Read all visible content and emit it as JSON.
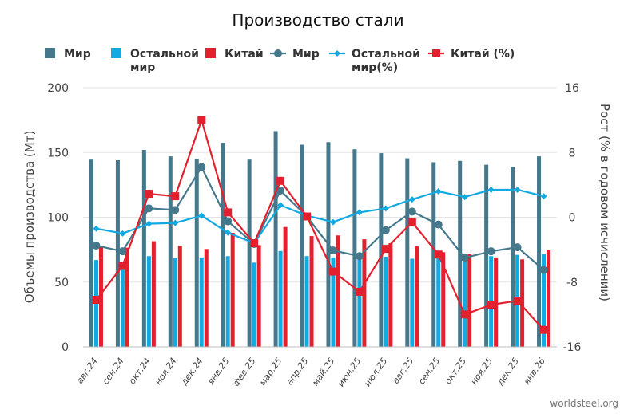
{
  "chart_data": {
    "type": "bar",
    "title": "Производство стали",
    "categories": [
      "авг.24",
      "сен.24",
      "окт.24",
      "ноя.24",
      "дек.24",
      "янв.25",
      "фев.25",
      "мар.25",
      "апр.25",
      "май.25",
      "июн.25",
      "июл.25",
      "авг.25",
      "сен.25",
      "окт.25",
      "ноя.25",
      "дек.25",
      "янв.26"
    ],
    "ylabel": "Объемы производства (Мт)",
    "y2label": "Рост (% в годовом исчислении)",
    "ylim": [
      0,
      200
    ],
    "y2lim": [
      -16,
      16
    ],
    "yticks": [
      0,
      50,
      100,
      150,
      200
    ],
    "y2ticks": [
      -16,
      -8,
      0,
      8,
      16
    ],
    "bars": [
      {
        "name": "Мир",
        "color": "#46788c",
        "values": [
          144.5,
          144,
          152,
          147,
          145,
          157.5,
          144.5,
          166.5,
          156,
          158,
          152.5,
          149.5,
          145.5,
          142.5,
          143.5,
          140.5,
          139,
          147
        ]
      },
      {
        "name": "Остальной мир",
        "color": "#13a9e1",
        "values": [
          67,
          63,
          70,
          68.5,
          69,
          70,
          65,
          74,
          70,
          69,
          70,
          69.5,
          68,
          69.5,
          70,
          70,
          71,
          71.5
        ]
      },
      {
        "name": "Китай",
        "color": "#e3202e",
        "values": [
          77.5,
          76.5,
          81.5,
          78,
          75.5,
          88,
          78.5,
          92.5,
          85.5,
          86,
          83,
          80,
          77.5,
          73,
          71.5,
          69,
          67.5,
          75
        ]
      }
    ],
    "lines": [
      {
        "name": "Мир",
        "color": "#46788c",
        "marker": "circle",
        "values": [
          -3.5,
          -4.2,
          1.1,
          0.9,
          6.2,
          -0.5,
          -3.3,
          3.3,
          0.1,
          -4.1,
          -4.8,
          -1.6,
          0.7,
          -0.9,
          -5,
          -4.2,
          -3.7,
          -6.5
        ]
      },
      {
        "name": "Остальной мир(%)",
        "color": "#13a9e1",
        "marker": "diamond",
        "values": [
          -1.4,
          -2,
          -0.8,
          -0.7,
          0.2,
          -1.9,
          -3.2,
          1.5,
          0.2,
          -0.6,
          0.6,
          1.1,
          2.2,
          3.2,
          2.5,
          3.4,
          3.4,
          2.6
        ]
      },
      {
        "name": "Китай (%)",
        "color": "#e3202e",
        "marker": "square",
        "values": [
          -10.2,
          -6,
          2.9,
          2.6,
          12,
          0.6,
          -3.2,
          4.5,
          0.1,
          -6.7,
          -9.2,
          -3.9,
          -0.6,
          -4.6,
          -12,
          -10.8,
          -10.3,
          -13.9
        ]
      }
    ],
    "legend": {
      "items": [
        {
          "line1": "Мир",
          "line2": "",
          "color": "#46788c",
          "kind": "bar"
        },
        {
          "line1": "Остальной",
          "line2": "мир",
          "color": "#13a9e1",
          "kind": "bar"
        },
        {
          "line1": "Китай",
          "line2": "",
          "color": "#e3202e",
          "kind": "bar"
        },
        {
          "line1": "Мир",
          "line2": "",
          "color": "#46788c",
          "kind": "line-circle"
        },
        {
          "line1": "Остальной",
          "line2": "мир(%)",
          "color": "#13a9e1",
          "kind": "line-diamond"
        },
        {
          "line1": "Китай (%)",
          "line2": "",
          "color": "#e3202e",
          "kind": "line-square"
        }
      ],
      "placement": "top"
    },
    "source": "worldsteel.org"
  },
  "colors": {
    "axis_text": "#444444",
    "grid": "#d9d9d9",
    "source_text": "#777777"
  }
}
